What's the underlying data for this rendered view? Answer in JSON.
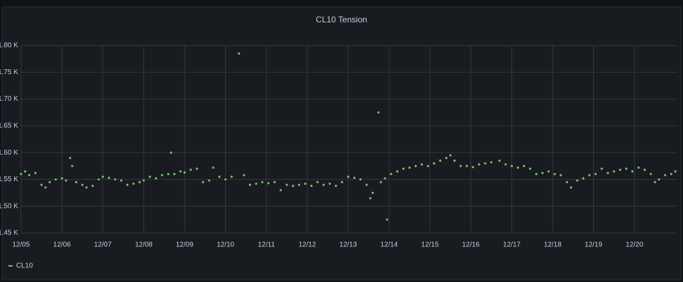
{
  "chart_data": {
    "type": "scatter",
    "title": "CL10 Tension",
    "x": [
      0,
      0.1,
      0.2,
      0.35,
      0.5,
      0.6,
      0.7,
      0.85,
      1.0,
      1.1,
      1.2,
      1.25,
      1.35,
      1.5,
      1.6,
      1.75,
      1.9,
      2.0,
      2.15,
      2.3,
      2.45,
      2.6,
      2.75,
      2.9,
      3.0,
      3.15,
      3.3,
      3.45,
      3.6,
      3.67,
      3.75,
      3.9,
      4.0,
      4.15,
      4.3,
      4.45,
      4.6,
      4.7,
      4.85,
      5.0,
      5.15,
      5.33,
      5.45,
      5.6,
      5.75,
      5.9,
      6.05,
      6.2,
      6.35,
      6.5,
      6.65,
      6.8,
      6.95,
      7.1,
      7.25,
      7.4,
      7.55,
      7.7,
      7.85,
      8.0,
      8.15,
      8.3,
      8.45,
      8.54,
      8.6,
      8.74,
      8.8,
      8.9,
      8.95,
      9.05,
      9.2,
      9.35,
      9.5,
      9.65,
      9.8,
      9.95,
      10.1,
      10.25,
      10.4,
      10.5,
      10.6,
      10.75,
      10.9,
      11.05,
      11.2,
      11.35,
      11.5,
      11.7,
      11.85,
      12.0,
      12.15,
      12.3,
      12.45,
      12.6,
      12.75,
      12.9,
      13.05,
      13.2,
      13.35,
      13.45,
      13.6,
      13.75,
      13.9,
      14.05,
      14.2,
      14.35,
      14.5,
      14.65,
      14.8,
      14.95,
      15.1,
      15.25,
      15.4,
      15.5,
      15.6,
      15.75,
      15.9,
      16.0
    ],
    "series": [
      {
        "name": "CL10",
        "color": "#73bf69",
        "values": [
          1560,
          1565,
          1558,
          1562,
          1540,
          1535,
          1545,
          1550,
          1552,
          1548,
          1590,
          1575,
          1545,
          1540,
          1535,
          1538,
          1550,
          1555,
          1553,
          1550,
          1548,
          1540,
          1542,
          1545,
          1548,
          1555,
          1552,
          1558,
          1560,
          1600,
          1560,
          1565,
          1563,
          1568,
          1570,
          1545,
          1548,
          1572,
          1555,
          1550,
          1555,
          1785,
          1558,
          1540,
          1542,
          1545,
          1543,
          1545,
          1530,
          1540,
          1538,
          1540,
          1542,
          1538,
          1545,
          1540,
          1542,
          1538,
          1545,
          1555,
          1553,
          1550,
          1540,
          1515,
          1525,
          1675,
          1545,
          1552,
          1475,
          1560,
          1565,
          1570,
          1572,
          1575,
          1578,
          1575,
          1580,
          1585,
          1590,
          1595,
          1585,
          1575,
          1575,
          1573,
          1578,
          1580,
          1582,
          1585,
          1578,
          1575,
          1572,
          1575,
          1570,
          1560,
          1562,
          1565,
          1560,
          1558,
          1545,
          1535,
          1548,
          1552,
          1558,
          1560,
          1570,
          1562,
          1565,
          1568,
          1570,
          1565,
          1572,
          1568,
          1560,
          1545,
          1550,
          1558,
          1560,
          1565
        ]
      }
    ],
    "xlim": [
      0,
      16.05
    ],
    "ylim": [
      1450,
      1800
    ],
    "xticks": [
      {
        "value": 0,
        "label": "12/05"
      },
      {
        "value": 1,
        "label": "12/06"
      },
      {
        "value": 2,
        "label": "12/07"
      },
      {
        "value": 3,
        "label": "12/08"
      },
      {
        "value": 4,
        "label": "12/09"
      },
      {
        "value": 5,
        "label": "12/10"
      },
      {
        "value": 6,
        "label": "12/11"
      },
      {
        "value": 7,
        "label": "12/12"
      },
      {
        "value": 8,
        "label": "12/13"
      },
      {
        "value": 9,
        "label": "12/14"
      },
      {
        "value": 10,
        "label": "12/15"
      },
      {
        "value": 11,
        "label": "12/16"
      },
      {
        "value": 12,
        "label": "12/17"
      },
      {
        "value": 13,
        "label": "12/18"
      },
      {
        "value": 14,
        "label": "12/19"
      },
      {
        "value": 15,
        "label": "12/20"
      }
    ],
    "yticks": [
      {
        "value": 1450,
        "label": "1.45 K"
      },
      {
        "value": 1500,
        "label": "1.50 K"
      },
      {
        "value": 1550,
        "label": "1.55 K"
      },
      {
        "value": 1600,
        "label": "1.60 K"
      },
      {
        "value": 1650,
        "label": "1.65 K"
      },
      {
        "value": 1700,
        "label": "1.70 K"
      },
      {
        "value": 1750,
        "label": "1.75 K"
      },
      {
        "value": 1800,
        "label": "1.80 K"
      }
    ],
    "grid": true
  }
}
